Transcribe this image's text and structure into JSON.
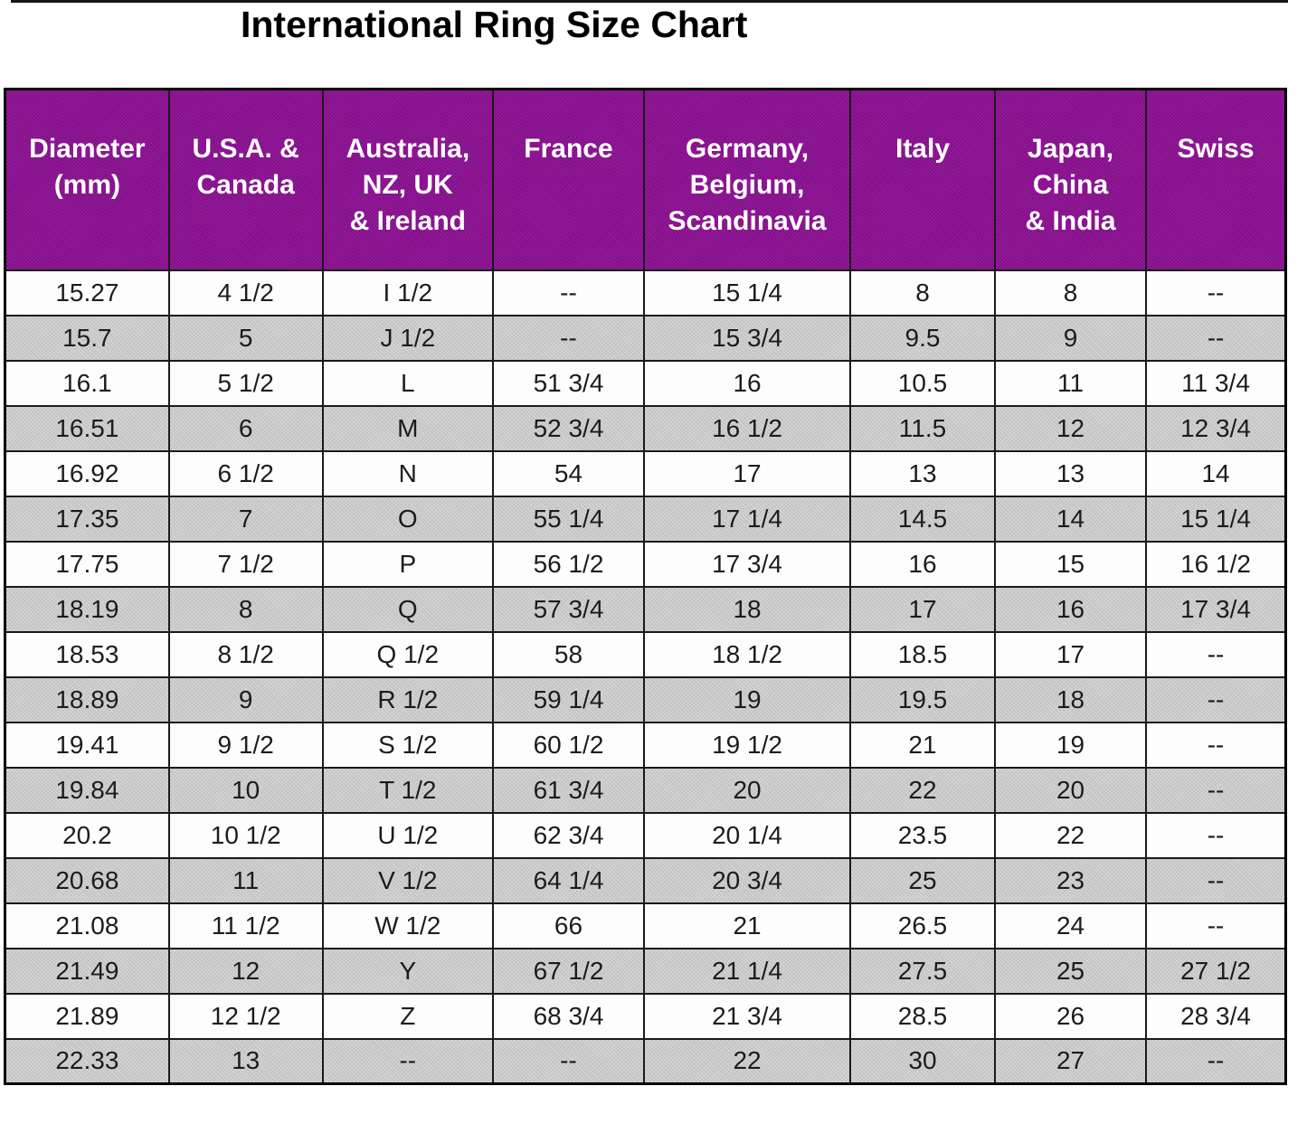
{
  "page": {
    "title": "International Ring Size Chart"
  },
  "colors": {
    "header_bg": "#8d1294",
    "header_text": "#ffffff",
    "row_bg": "#fdfdfd",
    "row_alt_bg": "#c9c9c9",
    "border": "#1a1a1a",
    "title_text": "#000000"
  },
  "table": {
    "headers": [
      "Diameter\n(mm)",
      "U.S.A. &\nCanada",
      "Australia,\nNZ, UK\n& Ireland",
      "France",
      "Germany,\nBelgium,\nScandinavia",
      "Italy",
      "Japan,\nChina\n& India",
      "Swiss"
    ],
    "rows": [
      [
        "15.27",
        "4 1/2",
        "I 1/2",
        "--",
        "15 1/4",
        "8",
        "8",
        "--"
      ],
      [
        "15.7",
        "5",
        "J 1/2",
        "--",
        "15 3/4",
        "9.5",
        "9",
        "--"
      ],
      [
        "16.1",
        "5 1/2",
        "L",
        "51 3/4",
        "16",
        "10.5",
        "11",
        "11 3/4"
      ],
      [
        "16.51",
        "6",
        "M",
        "52 3/4",
        "16 1/2",
        "11.5",
        "12",
        "12 3/4"
      ],
      [
        "16.92",
        "6 1/2",
        "N",
        "54",
        "17",
        "13",
        "13",
        "14"
      ],
      [
        "17.35",
        "7",
        "O",
        "55 1/4",
        "17 1/4",
        "14.5",
        "14",
        "15 1/4"
      ],
      [
        "17.75",
        "7 1/2",
        "P",
        "56 1/2",
        "17 3/4",
        "16",
        "15",
        "16 1/2"
      ],
      [
        "18.19",
        "8",
        "Q",
        "57 3/4",
        "18",
        "17",
        "16",
        "17 3/4"
      ],
      [
        "18.53",
        "8 1/2",
        "Q 1/2",
        "58",
        "18 1/2",
        "18.5",
        "17",
        "--"
      ],
      [
        "18.89",
        "9",
        "R 1/2",
        "59 1/4",
        "19",
        "19.5",
        "18",
        "--"
      ],
      [
        "19.41",
        "9 1/2",
        "S 1/2",
        "60 1/2",
        "19 1/2",
        "21",
        "19",
        "--"
      ],
      [
        "19.84",
        "10",
        "T 1/2",
        "61 3/4",
        "20",
        "22",
        "20",
        "--"
      ],
      [
        "20.2",
        "10 1/2",
        "U 1/2",
        "62 3/4",
        "20 1/4",
        "23.5",
        "22",
        "--"
      ],
      [
        "20.68",
        "11",
        "V 1/2",
        "64 1/4",
        "20 3/4",
        "25",
        "23",
        "--"
      ],
      [
        "21.08",
        "11 1/2",
        "W 1/2",
        "66",
        "21",
        "26.5",
        "24",
        "--"
      ],
      [
        "21.49",
        "12",
        "Y",
        "67 1/2",
        "21 1/4",
        "27.5",
        "25",
        "27 1/2"
      ],
      [
        "21.89",
        "12 1/2",
        "Z",
        "68 3/4",
        "21 3/4",
        "28.5",
        "26",
        "28 3/4"
      ],
      [
        "22.33",
        "13",
        "--",
        "--",
        "22",
        "30",
        "27",
        "--"
      ]
    ]
  },
  "chart_data": {
    "type": "table",
    "title": "International Ring Size Chart",
    "columns": [
      "Diameter (mm)",
      "U.S.A. & Canada",
      "Australia, NZ, UK & Ireland",
      "France",
      "Germany, Belgium, Scandinavia",
      "Italy",
      "Japan, China & India",
      "Swiss"
    ],
    "rows": [
      [
        "15.27",
        "4 1/2",
        "I 1/2",
        "--",
        "15 1/4",
        "8",
        "8",
        "--"
      ],
      [
        "15.7",
        "5",
        "J 1/2",
        "--",
        "15 3/4",
        "9.5",
        "9",
        "--"
      ],
      [
        "16.1",
        "5 1/2",
        "L",
        "51 3/4",
        "16",
        "10.5",
        "11",
        "11 3/4"
      ],
      [
        "16.51",
        "6",
        "M",
        "52 3/4",
        "16 1/2",
        "11.5",
        "12",
        "12 3/4"
      ],
      [
        "16.92",
        "6 1/2",
        "N",
        "54",
        "17",
        "13",
        "13",
        "14"
      ],
      [
        "17.35",
        "7",
        "O",
        "55 1/4",
        "17 1/4",
        "14.5",
        "14",
        "15 1/4"
      ],
      [
        "17.75",
        "7 1/2",
        "P",
        "56 1/2",
        "17 3/4",
        "16",
        "15",
        "16 1/2"
      ],
      [
        "18.19",
        "8",
        "Q",
        "57 3/4",
        "18",
        "17",
        "16",
        "17 3/4"
      ],
      [
        "18.53",
        "8 1/2",
        "Q 1/2",
        "58",
        "18 1/2",
        "18.5",
        "17",
        "--"
      ],
      [
        "18.89",
        "9",
        "R 1/2",
        "59 1/4",
        "19",
        "19.5",
        "18",
        "--"
      ],
      [
        "19.41",
        "9 1/2",
        "S 1/2",
        "60 1/2",
        "19 1/2",
        "21",
        "19",
        "--"
      ],
      [
        "19.84",
        "10",
        "T 1/2",
        "61 3/4",
        "20",
        "22",
        "20",
        "--"
      ],
      [
        "20.2",
        "10 1/2",
        "U 1/2",
        "62 3/4",
        "20 1/4",
        "23.5",
        "22",
        "--"
      ],
      [
        "20.68",
        "11",
        "V 1/2",
        "64 1/4",
        "20 3/4",
        "25",
        "23",
        "--"
      ],
      [
        "21.08",
        "11 1/2",
        "W 1/2",
        "66",
        "21",
        "26.5",
        "24",
        "--"
      ],
      [
        "21.49",
        "12",
        "Y",
        "67 1/2",
        "21 1/4",
        "27.5",
        "25",
        "27 1/2"
      ],
      [
        "21.89",
        "12 1/2",
        "Z",
        "68 3/4",
        "21 3/4",
        "28.5",
        "26",
        "28 3/4"
      ],
      [
        "22.33",
        "13",
        "--",
        "--",
        "22",
        "30",
        "27",
        "--"
      ]
    ]
  }
}
